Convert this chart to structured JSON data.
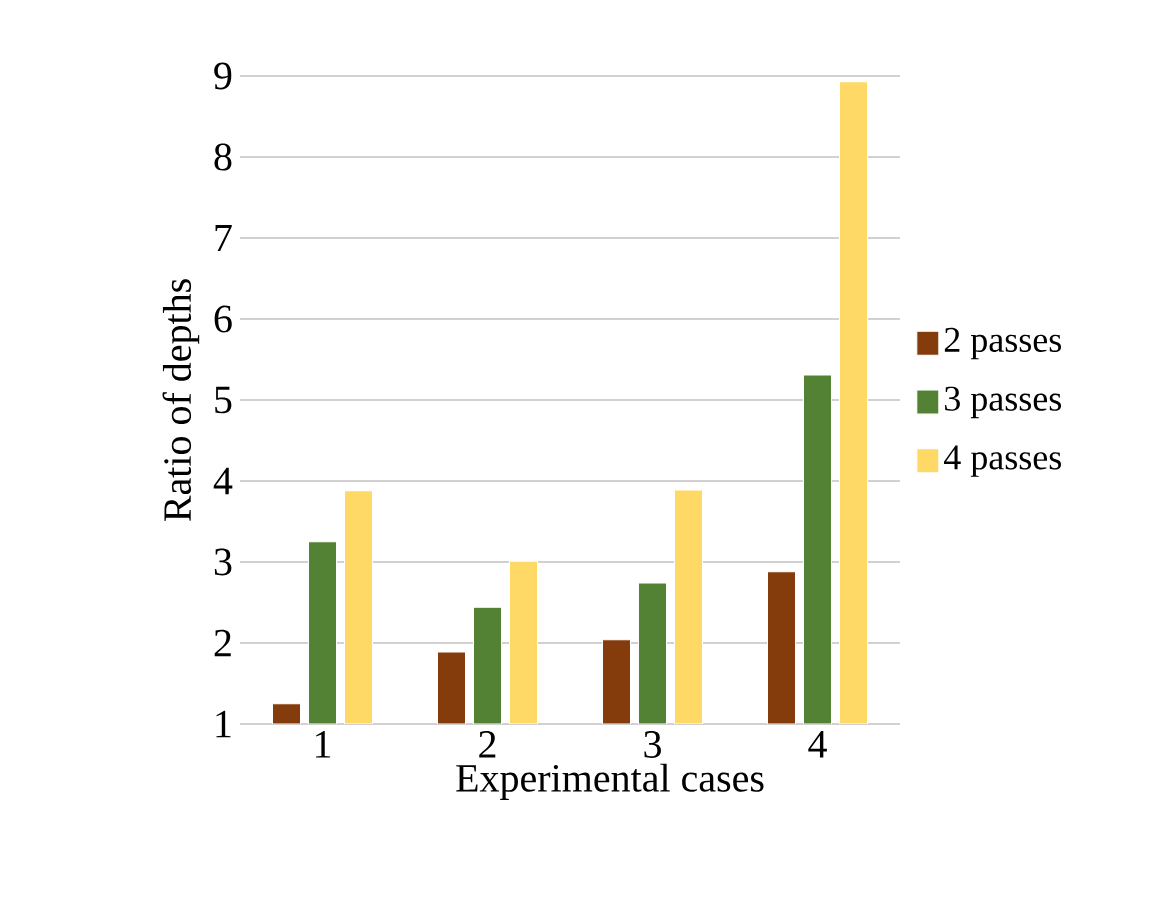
{
  "chart_data": {
    "type": "bar",
    "xlabel": "Experimental cases",
    "ylabel": "Ratio of depths",
    "categories": [
      "1",
      "2",
      "3",
      "4"
    ],
    "series": [
      {
        "name": "2 passes",
        "color": "#843c0c",
        "values": [
          1.25,
          1.89,
          2.04,
          2.88
        ]
      },
      {
        "name": "3 passes",
        "color": "#548235",
        "values": [
          3.25,
          2.44,
          2.74,
          5.31
        ]
      },
      {
        "name": "4 passes",
        "color": "#ffd966",
        "values": [
          3.88,
          3.01,
          3.89,
          8.93
        ]
      }
    ],
    "ylim": [
      1,
      9
    ],
    "yticks": [
      1,
      2,
      3,
      4,
      5,
      6,
      7,
      8,
      9
    ],
    "grid": "y",
    "legend": "right"
  }
}
